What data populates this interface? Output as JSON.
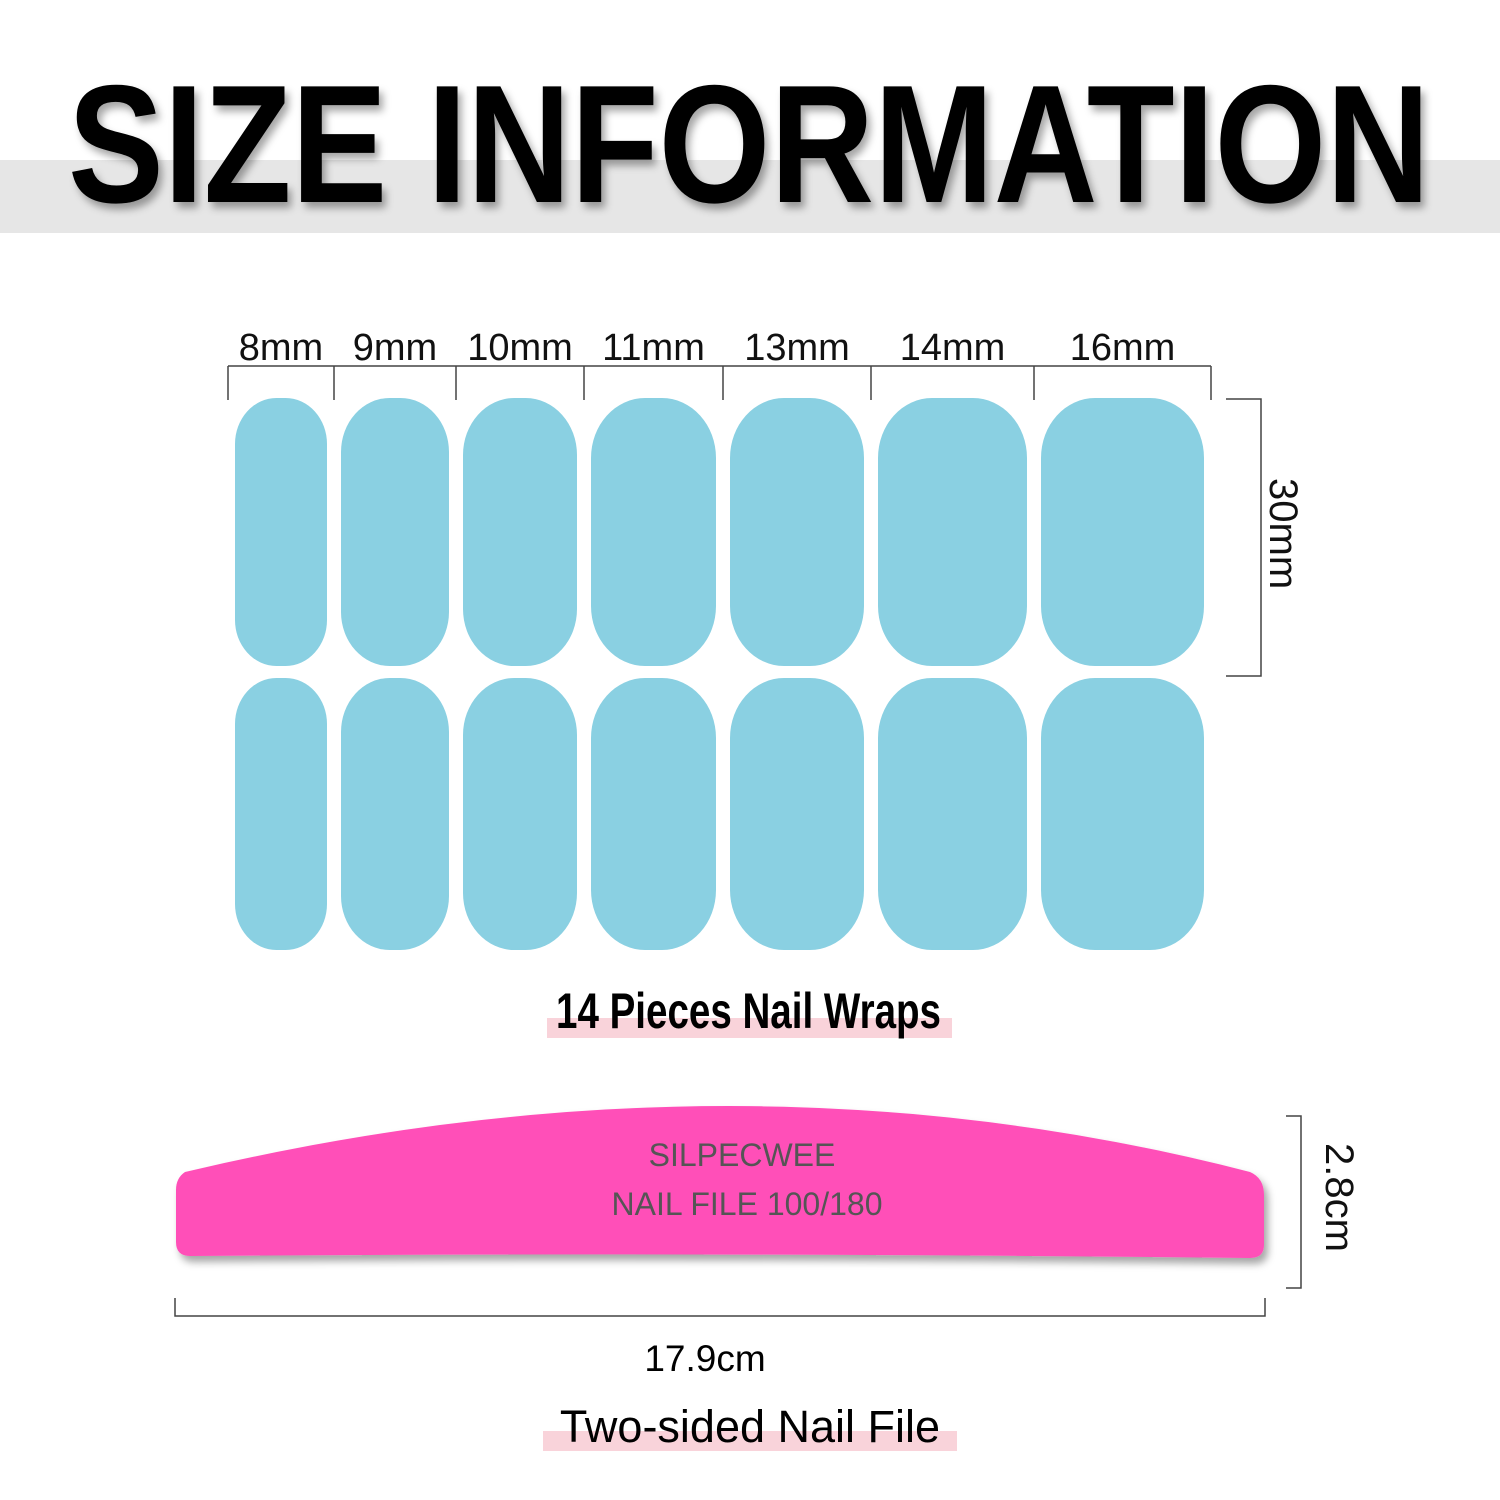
{
  "title": "SIZE INFORMATION",
  "nail_widths": [
    "8mm",
    "9mm",
    "10mm",
    "11mm",
    "13mm",
    "14mm",
    "16mm"
  ],
  "nail_height": "30mm",
  "nails_caption": "14 Pieces Nail Wraps",
  "file": {
    "brand": "SILPECWEE",
    "label": "NAIL FILE 100/180",
    "length": "17.9cm",
    "width": "2.8cm",
    "caption": "Two-sided Nail File"
  },
  "colors": {
    "nail": "#8ad0e2",
    "file": "#ff4fb8",
    "title_band": "#e6e6e6",
    "caption_highlight": "#f9d3da"
  }
}
